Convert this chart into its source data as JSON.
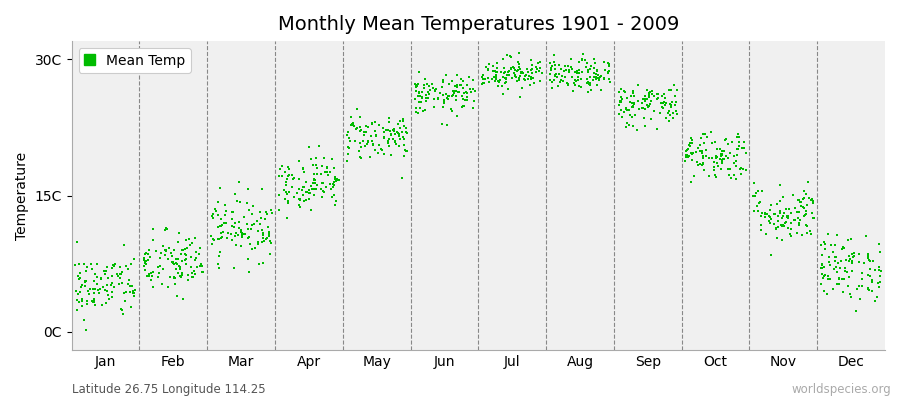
{
  "title": "Monthly Mean Temperatures 1901 - 2009",
  "ylabel": "Temperature",
  "ytick_labels": [
    "0C",
    "15C",
    "30C"
  ],
  "ytick_values": [
    0,
    15,
    30
  ],
  "ylim": [
    -2,
    32
  ],
  "months": [
    "Jan",
    "Feb",
    "Mar",
    "Apr",
    "May",
    "Jun",
    "Jul",
    "Aug",
    "Sep",
    "Oct",
    "Nov",
    "Dec"
  ],
  "monthly_means": [
    5.0,
    7.5,
    11.5,
    16.5,
    21.5,
    26.0,
    28.5,
    28.2,
    25.0,
    19.5,
    13.0,
    7.0
  ],
  "monthly_std": [
    1.8,
    1.8,
    1.8,
    1.5,
    1.3,
    1.1,
    0.9,
    0.9,
    1.2,
    1.4,
    1.6,
    1.8
  ],
  "n_years": 109,
  "marker_color": "#00bb00",
  "marker_size": 3,
  "plot_bg": "#f0f0f0",
  "figure_bg": "#ffffff",
  "vline_color": "#888888",
  "title_fontsize": 14,
  "axis_fontsize": 10,
  "tick_fontsize": 10,
  "legend_label": "Mean Temp",
  "caption_left": "Latitude 26.75 Longitude 114.25",
  "caption_right": "worldspecies.org",
  "seed": 42
}
